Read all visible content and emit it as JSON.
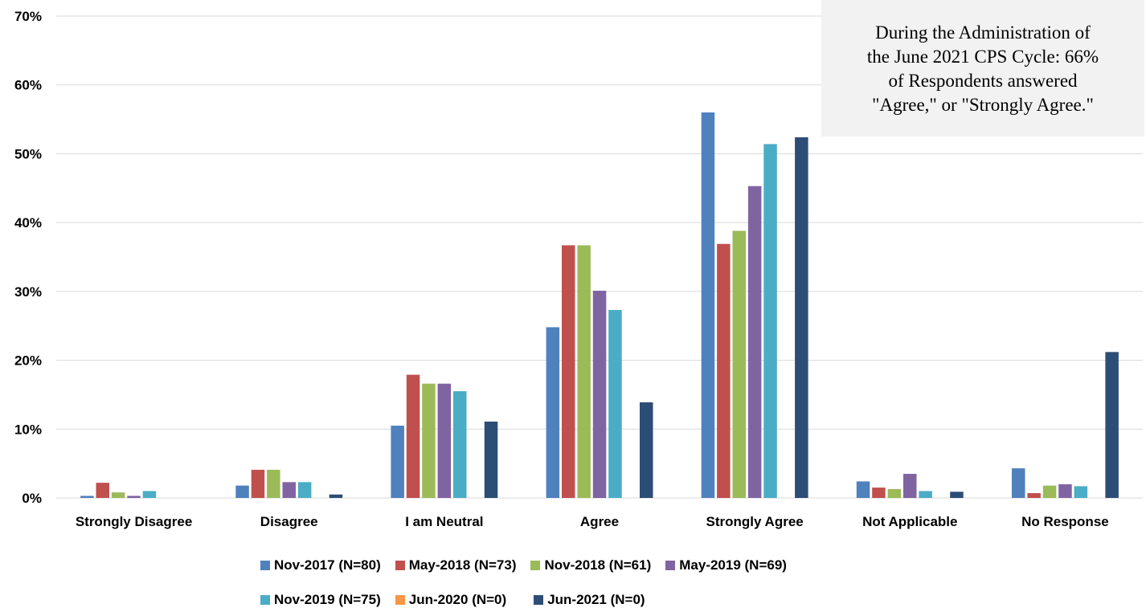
{
  "chart_data": {
    "type": "bar",
    "categories": [
      "Strongly Disagree",
      "Disagree",
      "I am Neutral",
      "Agree",
      "Strongly Agree",
      "Not Applicable",
      "No Response"
    ],
    "series": [
      {
        "name": "Nov-2017 (N=80)",
        "color": "#4f81bd",
        "values": [
          0.3,
          1.8,
          10.5,
          24.8,
          56.0,
          2.4,
          4.3
        ]
      },
      {
        "name": "May-2018 (N=73)",
        "color": "#c0504d",
        "values": [
          2.2,
          4.1,
          17.9,
          36.7,
          36.9,
          1.5,
          0.7
        ]
      },
      {
        "name": "Nov-2018 (N=61)",
        "color": "#9bbb59",
        "values": [
          0.8,
          4.1,
          16.6,
          36.7,
          38.8,
          1.3,
          1.8
        ]
      },
      {
        "name": "May-2019 (N=69)",
        "color": "#8064a2",
        "values": [
          0.3,
          2.3,
          16.6,
          30.1,
          45.3,
          3.5,
          2.0
        ]
      },
      {
        "name": "Nov-2019 (N=75)",
        "color": "#4bacc6",
        "values": [
          1.0,
          2.3,
          15.5,
          27.3,
          51.4,
          1.0,
          1.7
        ]
      },
      {
        "name": "Jun-2020 (N=0)",
        "color": "#f79646",
        "values": [
          0,
          0,
          0,
          0,
          0,
          0,
          0
        ]
      },
      {
        "name": "Jun-2021 (N=0)",
        "color": "#2c4d75",
        "values": [
          0,
          0.5,
          11.1,
          13.9,
          52.4,
          0.9,
          21.2
        ]
      }
    ],
    "ylim": [
      0,
      70
    ],
    "yticks": [
      "0%",
      "10%",
      "20%",
      "30%",
      "40%",
      "50%",
      "60%",
      "70%"
    ],
    "grid": true,
    "legend_position": "bottom",
    "annotation": [
      "During the Administration of",
      "the June 2021 CPS Cycle: 66%",
      "of Respondents answered",
      "\"Agree,\" or \"Strongly Agree.\""
    ]
  }
}
